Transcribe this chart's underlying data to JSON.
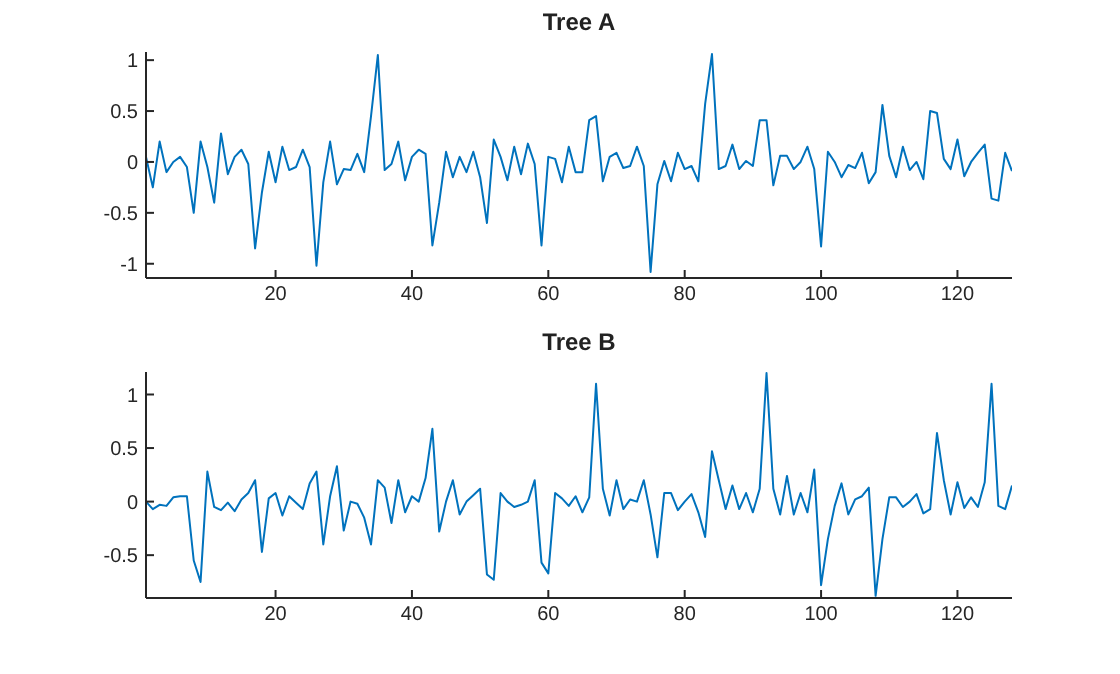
{
  "chart_data": [
    {
      "type": "line",
      "title": "Tree A",
      "color": "#0072bd",
      "xlim": [
        1,
        128
      ],
      "xticks": [
        20,
        40,
        60,
        80,
        100,
        120
      ],
      "ylim": [
        -1.14,
        1.08
      ],
      "yticks": [
        -1,
        -0.5,
        0,
        0.5,
        1
      ],
      "x": [
        1,
        2,
        3,
        4,
        5,
        6,
        7,
        8,
        9,
        10,
        11,
        12,
        13,
        14,
        15,
        16,
        17,
        18,
        19,
        20,
        21,
        22,
        23,
        24,
        25,
        26,
        27,
        28,
        29,
        30,
        31,
        32,
        33,
        34,
        35,
        36,
        37,
        38,
        39,
        40,
        41,
        42,
        43,
        44,
        45,
        46,
        47,
        48,
        49,
        50,
        51,
        52,
        53,
        54,
        55,
        56,
        57,
        58,
        59,
        60,
        61,
        62,
        63,
        64,
        65,
        66,
        67,
        68,
        69,
        70,
        71,
        72,
        73,
        74,
        75,
        76,
        77,
        78,
        79,
        80,
        81,
        82,
        83,
        84,
        85,
        86,
        87,
        88,
        89,
        90,
        91,
        92,
        93,
        94,
        95,
        96,
        97,
        98,
        99,
        100,
        101,
        102,
        103,
        104,
        105,
        106,
        107,
        108,
        109,
        110,
        111,
        112,
        113,
        114,
        115,
        116,
        117,
        118,
        119,
        120,
        121,
        122,
        123,
        124,
        125,
        126,
        127,
        128
      ],
      "values": [
        0.05,
        -0.25,
        0.2,
        -0.1,
        0,
        0.05,
        -0.05,
        -0.5,
        0.2,
        -0.05,
        -0.4,
        0.28,
        -0.12,
        0.05,
        0.12,
        -0.02,
        -0.85,
        -0.3,
        0.1,
        -0.2,
        0.15,
        -0.08,
        -0.05,
        0.12,
        -0.05,
        -1.02,
        -0.2,
        0.2,
        -0.22,
        -0.07,
        -0.08,
        0.08,
        -0.1,
        0.45,
        1.05,
        -0.08,
        -0.02,
        0.2,
        -0.18,
        0.05,
        0.12,
        0.08,
        -0.82,
        -0.4,
        0.1,
        -0.15,
        0.05,
        -0.1,
        0.1,
        -0.15,
        -0.6,
        0.22,
        0.05,
        -0.18,
        0.15,
        -0.12,
        0.18,
        -0.02,
        -0.82,
        0.05,
        0.03,
        -0.2,
        0.15,
        -0.1,
        -0.1,
        0.41,
        0.45,
        -0.19,
        0.05,
        0.09,
        -0.06,
        -0.04,
        0.15,
        -0.04,
        -1.08,
        -0.22,
        0.01,
        -0.19,
        0.09,
        -0.07,
        -0.04,
        -0.19,
        0.57,
        1.06,
        -0.07,
        -0.04,
        0.17,
        -0.07,
        0.01,
        -0.04,
        0.41,
        0.41,
        -0.23,
        0.06,
        0.06,
        -0.07,
        0,
        0.15,
        -0.07,
        -0.83,
        0.1,
        0,
        -0.15,
        -0.03,
        -0.06,
        0.09,
        -0.21,
        -0.1,
        0.56,
        0.06,
        -0.15,
        0.15,
        -0.08,
        0,
        -0.17,
        0.5,
        0.48,
        0.03,
        -0.07,
        0.22,
        -0.14,
        0,
        0.09,
        0.17,
        -0.36,
        -0.38,
        0.09,
        -0.09
      ]
    },
    {
      "type": "line",
      "title": "Tree B",
      "color": "#0072bd",
      "xlim": [
        1,
        128
      ],
      "xticks": [
        20,
        40,
        60,
        80,
        100,
        120
      ],
      "ylim": [
        -0.9,
        1.21
      ],
      "yticks": [
        -0.5,
        0,
        0.5,
        1
      ],
      "x": [
        1,
        2,
        3,
        4,
        5,
        6,
        7,
        8,
        9,
        10,
        11,
        12,
        13,
        14,
        15,
        16,
        17,
        18,
        19,
        20,
        21,
        22,
        23,
        24,
        25,
        26,
        27,
        28,
        29,
        30,
        31,
        32,
        33,
        34,
        35,
        36,
        37,
        38,
        39,
        40,
        41,
        42,
        43,
        44,
        45,
        46,
        47,
        48,
        49,
        50,
        51,
        52,
        53,
        54,
        55,
        56,
        57,
        58,
        59,
        60,
        61,
        62,
        63,
        64,
        65,
        66,
        67,
        68,
        69,
        70,
        71,
        72,
        73,
        74,
        75,
        76,
        77,
        78,
        79,
        80,
        81,
        82,
        83,
        84,
        85,
        86,
        87,
        88,
        89,
        90,
        91,
        92,
        93,
        94,
        95,
        96,
        97,
        98,
        99,
        100,
        101,
        102,
        103,
        104,
        105,
        106,
        107,
        108,
        109,
        110,
        111,
        112,
        113,
        114,
        115,
        116,
        117,
        118,
        119,
        120,
        121,
        122,
        123,
        124,
        125,
        126,
        127,
        128
      ],
      "values": [
        0,
        -0.07,
        -0.03,
        -0.04,
        0.04,
        0.05,
        0.05,
        -0.55,
        -0.75,
        0.28,
        -0.05,
        -0.08,
        -0.01,
        -0.09,
        0.02,
        0.08,
        0.2,
        -0.47,
        0.03,
        0.08,
        -0.13,
        0.05,
        -0.01,
        -0.07,
        0.17,
        0.28,
        -0.4,
        0.05,
        0.33,
        -0.27,
        0,
        -0.02,
        -0.15,
        -0.4,
        0.2,
        0.13,
        -0.2,
        0.2,
        -0.1,
        0.05,
        0,
        0.22,
        0.68,
        -0.28,
        0,
        0.2,
        -0.12,
        0,
        0.06,
        0.12,
        -0.68,
        -0.73,
        0.08,
        0,
        -0.05,
        -0.03,
        0,
        0.2,
        -0.57,
        -0.67,
        0.08,
        0.03,
        -0.04,
        0.05,
        -0.1,
        0.04,
        1.1,
        0.12,
        -0.13,
        0.2,
        -0.07,
        0.02,
        0,
        0.2,
        -0.12,
        -0.52,
        0.08,
        0.08,
        -0.08,
        0,
        0.07,
        -0.1,
        -0.33,
        0.47,
        0.2,
        -0.07,
        0.15,
        -0.07,
        0.08,
        -0.1,
        0.12,
        1.2,
        0.12,
        -0.12,
        0.24,
        -0.12,
        0.08,
        -0.1,
        0.3,
        -0.78,
        -0.35,
        -0.04,
        0.17,
        -0.12,
        0.02,
        0.05,
        0.13,
        -0.88,
        -0.35,
        0.04,
        0.04,
        -0.05,
        0,
        0.07,
        -0.11,
        -0.07,
        0.64,
        0.2,
        -0.12,
        0.18,
        -0.06,
        0.04,
        -0.05,
        0.18,
        1.1,
        -0.04,
        -0.07,
        0.15
      ]
    }
  ]
}
